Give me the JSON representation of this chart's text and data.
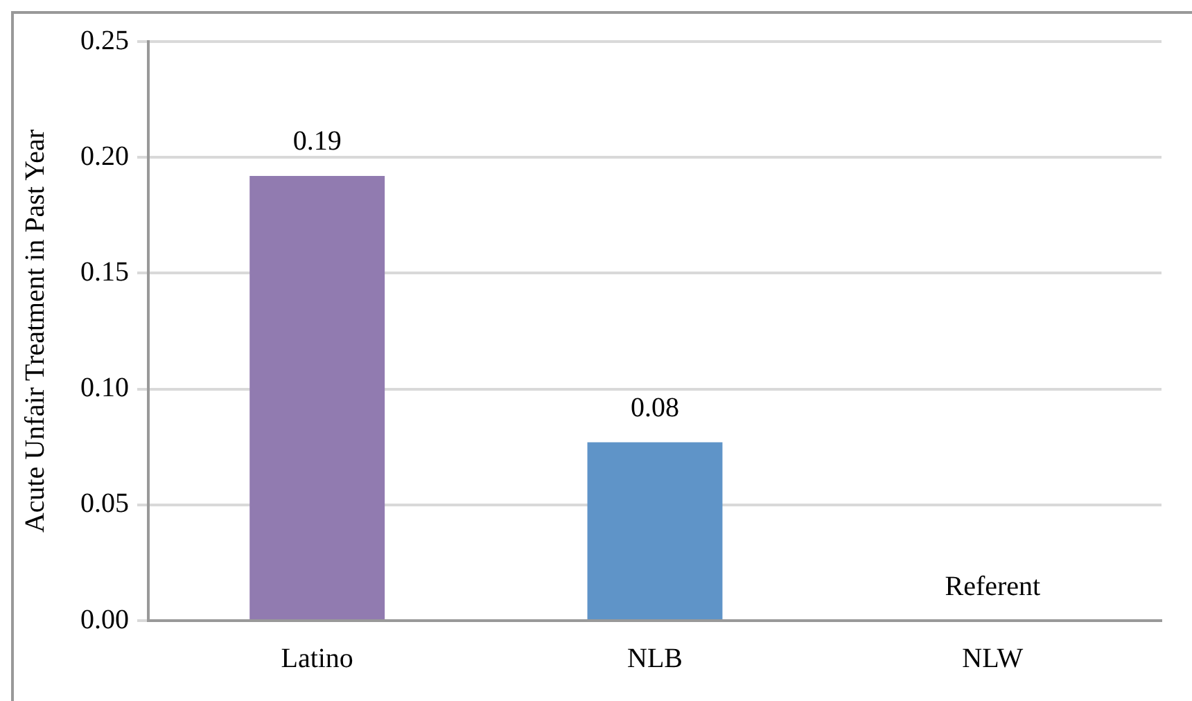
{
  "chart_data": {
    "type": "bar",
    "ylabel": "Acute Unfair Treatment in Past Year",
    "categories": [
      "Latino",
      "NLB",
      "NLW"
    ],
    "values": [
      0.192,
      0.077,
      null
    ],
    "colors": [
      "#917bb0",
      "#5f94c8",
      "#5f94c8"
    ],
    "value_labels": [
      "0.19",
      "0.08",
      "Referent"
    ],
    "ylim": [
      0,
      0.25
    ],
    "yticks": [
      "0.00",
      "0.05",
      "0.10",
      "0.15",
      "0.20",
      "0.25"
    ],
    "grid": "y",
    "legend": false
  }
}
